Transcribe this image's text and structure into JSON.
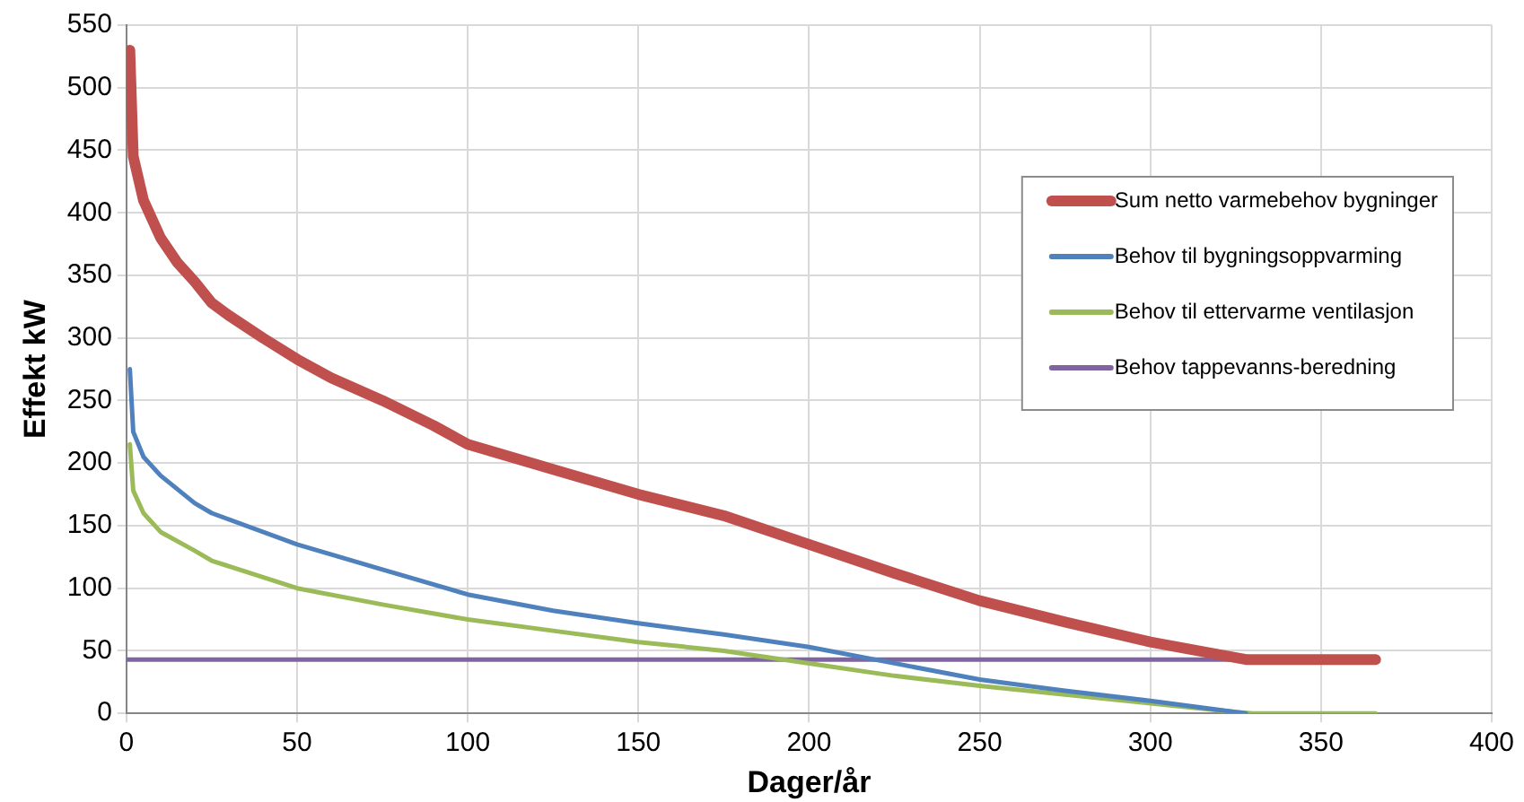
{
  "chart_data": {
    "type": "line",
    "xlabel": "Dager/år",
    "ylabel": "Effekt kW",
    "xlim": [
      0,
      400
    ],
    "xticks": [
      0,
      50,
      100,
      150,
      200,
      250,
      300,
      350,
      400
    ],
    "ylim": [
      0,
      550
    ],
    "yticks": [
      0,
      50,
      100,
      150,
      200,
      250,
      300,
      350,
      400,
      450,
      500,
      550
    ],
    "grid": true,
    "legend": "right",
    "marker": "none",
    "line_style": "solid",
    "series": [
      {
        "name": "Sum netto varmebehov bygninger",
        "color": "#c0504d",
        "x": [
          1,
          2,
          5,
          10,
          15,
          20,
          25,
          30,
          40,
          50,
          60,
          75,
          90,
          100,
          125,
          150,
          175,
          200,
          225,
          250,
          275,
          300,
          320,
          328,
          366
        ],
        "values": [
          530,
          445,
          410,
          380,
          360,
          345,
          328,
          318,
          300,
          283,
          268,
          250,
          230,
          215,
          195,
          175,
          158,
          135,
          112,
          90,
          73,
          57,
          47,
          43,
          43
        ]
      },
      {
        "name": "Behov til bygningsoppvarming",
        "color": "#4f81bd",
        "x": [
          1,
          2,
          5,
          10,
          20,
          25,
          50,
          75,
          100,
          125,
          150,
          175,
          200,
          225,
          250,
          275,
          300,
          325,
          328
        ],
        "values": [
          275,
          225,
          205,
          190,
          168,
          160,
          135,
          115,
          95,
          82,
          72,
          63,
          53,
          40,
          27,
          18,
          10,
          1,
          0
        ]
      },
      {
        "name": "Behov til ettervarme ventilasjon",
        "color": "#9bbb59",
        "x": [
          1,
          2,
          5,
          10,
          20,
          25,
          50,
          75,
          100,
          125,
          150,
          175,
          200,
          225,
          250,
          275,
          300,
          325,
          330,
          366
        ],
        "values": [
          215,
          178,
          160,
          145,
          130,
          122,
          100,
          87,
          75,
          66,
          57,
          50,
          40,
          30,
          22,
          15,
          8,
          1,
          0,
          0
        ]
      },
      {
        "name": "Behov tappevanns-beredning",
        "color": "#8064a2",
        "x": [
          0,
          366
        ],
        "values": [
          43,
          43
        ]
      }
    ]
  }
}
